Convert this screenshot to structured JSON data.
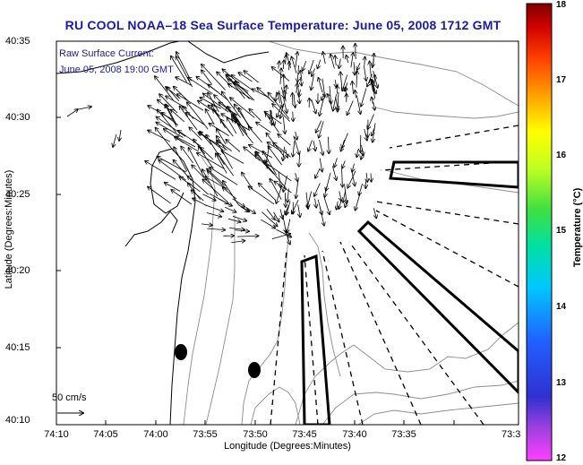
{
  "title": "RU COOL  NOAA–18  Sea Surface Temperature:  June 05, 2008 1712 GMT",
  "annotation": {
    "line1": "Raw Surface Current:",
    "line2": "June 05, 2008 19:00 GMT"
  },
  "axes": {
    "ylabel": "Latitude (Degrees:Minutes)",
    "xlabel": "Longitude (Degrees:Minutes)",
    "yticks": [
      "40:35",
      "40:30",
      "40:25",
      "40:20",
      "40:15",
      "40:10"
    ],
    "xticks": [
      "74:10",
      "74:05",
      "74:00",
      "73:55",
      "73:50",
      "73:45",
      "73:40",
      "73:35",
      "73:3"
    ]
  },
  "colorbar": {
    "label": "Temperature (°C)",
    "ticks": [
      "18",
      "17",
      "16",
      "15",
      "14",
      "13",
      "12"
    ],
    "min": 12,
    "max": 18
  },
  "scale": {
    "label": "50 cm/s"
  },
  "colors": {
    "title": "#1a1aa8",
    "coast": "#000000",
    "contour": "#8c8c8c"
  }
}
